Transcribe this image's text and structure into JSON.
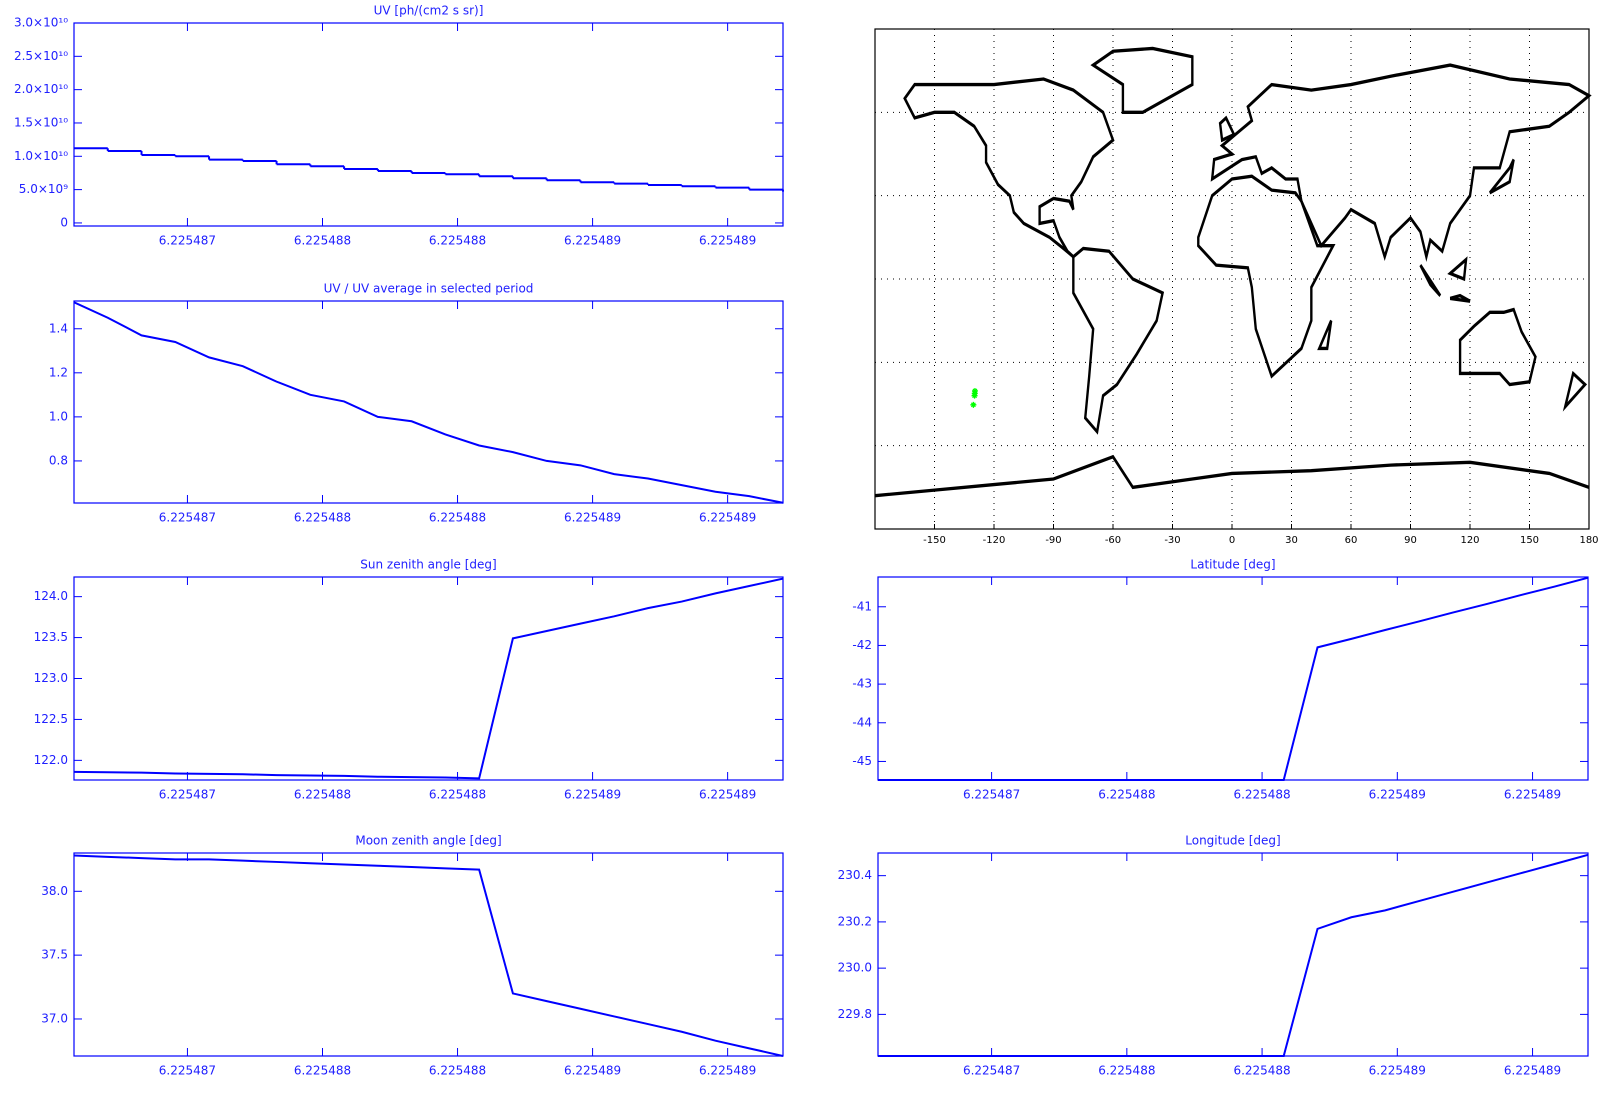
{
  "chart_data": [
    {
      "type": "line",
      "title": "UV [ph/(cm2 s sr)]",
      "steps": true,
      "color": "#0000ff",
      "x": [
        6.22548658,
        6.225486705,
        6.22548683,
        6.225486955,
        6.22548708,
        6.225487205,
        6.22548733,
        6.225487455,
        6.22548758,
        6.225487705,
        6.22548783,
        6.225487955,
        6.22548808,
        6.225488205,
        6.22548833,
        6.225488455,
        6.22548858,
        6.225488705,
        6.22548883,
        6.225488955,
        6.22548908,
        6.225489205
      ],
      "values": [
        11200000000.0,
        10800000000.0,
        10200000000.0,
        10000000000.0,
        9500000000.0,
        9300000000.0,
        8800000000.0,
        8500000000.0,
        8100000000.0,
        7800000000.0,
        7500000000.0,
        7300000000.0,
        7000000000.0,
        6700000000.0,
        6400000000.0,
        6100000000.0,
        5900000000.0,
        5700000000.0,
        5500000000.0,
        5300000000.0,
        5000000000.0,
        4700000000.0
      ],
      "xlim": [
        6.22548658,
        6.225489205
      ],
      "xticks": [
        6.225487,
        {
          "value": 6.2254875,
          "label": "6.225488"
        },
        6.225488,
        {
          "value": 6.2254885,
          "label": "6.225489"
        },
        6.225489
      ],
      "ylim": [
        -460000000.0,
        30000000000.0
      ],
      "yticks": [
        0,
        {
          "value": 5000000000.0,
          "label": "5.0×10⁹"
        },
        {
          "value": 10000000000.0,
          "label": "1.0×10¹⁰"
        },
        {
          "value": 15000000000.0,
          "label": "1.5×10¹⁰"
        },
        {
          "value": 20000000000.0,
          "label": "2.0×10¹⁰"
        },
        {
          "value": 25000000000.0,
          "label": "2.5×10¹⁰"
        },
        {
          "value": 30000000000.0,
          "label": "3.0×10¹⁰"
        }
      ]
    },
    {
      "type": "line",
      "title": "UV / UV average in selected period",
      "color": "#0000ff",
      "x": [
        6.22548658,
        6.225486705,
        6.22548683,
        6.225486955,
        6.22548708,
        6.225487205,
        6.22548733,
        6.225487455,
        6.22548758,
        6.225487705,
        6.22548783,
        6.225487955,
        6.22548808,
        6.225488205,
        6.22548833,
        6.225488455,
        6.22548858,
        6.225488705,
        6.22548883,
        6.225488955,
        6.22548908,
        6.225489205
      ],
      "values": [
        1.52,
        1.45,
        1.37,
        1.34,
        1.27,
        1.23,
        1.16,
        1.1,
        1.07,
        1.0,
        0.98,
        0.92,
        0.87,
        0.84,
        0.8,
        0.78,
        0.74,
        0.72,
        0.69,
        0.66,
        0.64,
        0.61
      ],
      "xlim": [
        6.22548658,
        6.225489205
      ],
      "xticks": [
        6.225487,
        {
          "value": 6.2254875,
          "label": "6.225488"
        },
        6.225488,
        {
          "value": 6.2254885,
          "label": "6.225489"
        },
        6.225489
      ],
      "ylim": [
        0.609,
        1.526
      ],
      "yticks": [
        0.8,
        {
          "value": 1,
          "label": "1.0"
        },
        1.2,
        1.4
      ]
    },
    {
      "type": "line",
      "title": "Sun zenith angle [deg]",
      "color": "#0000ff",
      "x": [
        6.22548658,
        6.225486705,
        6.22548683,
        6.225486955,
        6.22548708,
        6.225487205,
        6.22548733,
        6.225487455,
        6.22548758,
        6.225487705,
        6.22548783,
        6.225487955,
        6.22548808,
        6.225488205,
        6.22548833,
        6.225488455,
        6.22548858,
        6.225488705,
        6.22548883,
        6.225488955,
        6.22548908,
        6.225489205
      ],
      "values": [
        121.86,
        121.855,
        121.85,
        121.84,
        121.835,
        121.83,
        121.82,
        121.815,
        121.81,
        121.8,
        121.795,
        121.79,
        121.78,
        123.49,
        123.58,
        123.67,
        123.76,
        123.86,
        123.94,
        124.04,
        124.13,
        124.22
      ],
      "xlim": [
        6.22548658,
        6.225489205
      ],
      "xticks": [
        6.225487,
        {
          "value": 6.2254875,
          "label": "6.225488"
        },
        6.225488,
        {
          "value": 6.2254885,
          "label": "6.225489"
        },
        6.225489
      ],
      "ylim": [
        121.76,
        124.24
      ],
      "yticks": [
        {
          "value": 122,
          "label": "122.0"
        },
        122.5,
        {
          "value": 123,
          "label": "123.0"
        },
        123.5,
        {
          "value": 124,
          "label": "124.0"
        }
      ]
    },
    {
      "type": "line",
      "title": "Moon zenith angle [deg]",
      "color": "#0000ff",
      "x": [
        6.22548658,
        6.225486705,
        6.22548683,
        6.225486955,
        6.22548708,
        6.225487205,
        6.22548733,
        6.225487455,
        6.22548758,
        6.225487705,
        6.22548783,
        6.225487955,
        6.22548808,
        6.225488205,
        6.22548833,
        6.225488455,
        6.22548858,
        6.225488705,
        6.22548883,
        6.225488955,
        6.22548908,
        6.225489205
      ],
      "values": [
        38.28,
        38.27,
        38.26,
        38.25,
        38.25,
        38.24,
        38.23,
        38.22,
        38.21,
        38.2,
        38.19,
        38.18,
        38.17,
        37.2,
        37.14,
        37.08,
        37.02,
        36.96,
        36.9,
        36.83,
        36.77,
        36.71
      ],
      "xlim": [
        6.22548658,
        6.225489205
      ],
      "xticks": [
        6.225487,
        {
          "value": 6.2254875,
          "label": "6.225488"
        },
        6.225488,
        {
          "value": 6.2254885,
          "label": "6.225489"
        },
        6.225489
      ],
      "ylim": [
        36.71,
        38.3
      ],
      "yticks": [
        {
          "value": 37,
          "label": "37.0"
        },
        37.5,
        {
          "value": 38,
          "label": "38.0"
        }
      ]
    },
    {
      "type": "map",
      "color": "#000000",
      "series": [
        {
          "color": "#00ff00",
          "x": [
            -130.4,
            -129.8,
            -129.7,
            -129.6
          ],
          "values": [
            -45.3,
            -42.0,
            -41.2,
            -40.3
          ]
        }
      ],
      "xlim": [
        -180,
        180
      ],
      "xticks": [
        -150,
        -120,
        -90,
        -60,
        -30,
        0,
        30,
        60,
        90,
        120,
        150,
        180
      ],
      "ylim": [
        -90,
        90
      ],
      "y_gridlines": [
        -60,
        -30,
        0,
        30,
        60
      ]
    },
    {
      "type": "line",
      "title": "Latitude [deg]",
      "color": "#0000ff",
      "x": [
        6.22548658,
        6.225486705,
        6.22548683,
        6.225486955,
        6.22548708,
        6.225487205,
        6.22548733,
        6.225487455,
        6.22548758,
        6.225487705,
        6.22548783,
        6.225487955,
        6.22548808,
        6.225488205,
        6.22548833,
        6.225488455,
        6.22548858,
        6.225488705,
        6.22548883,
        6.225488955,
        6.22548908,
        6.225489205
      ],
      "values": [
        -45.48,
        -45.48,
        -45.48,
        -45.48,
        -45.48,
        -45.48,
        -45.48,
        -45.48,
        -45.48,
        -45.48,
        -45.48,
        -45.48,
        -45.48,
        -42.05,
        -41.83,
        -41.6,
        -41.38,
        -41.15,
        -40.93,
        -40.7,
        -40.48,
        -40.25
      ],
      "xlim": [
        6.22548658,
        6.225489205
      ],
      "xticks": [
        6.225487,
        {
          "value": 6.2254875,
          "label": "6.225488"
        },
        6.225488,
        {
          "value": 6.2254885,
          "label": "6.225489"
        },
        6.225489
      ],
      "ylim": [
        -45.48,
        -40.23
      ],
      "yticks": [
        -45,
        -44,
        -43,
        -42,
        -41
      ]
    },
    {
      "type": "line",
      "title": "Longitude [deg]",
      "color": "#0000ff",
      "x": [
        6.22548658,
        6.225486705,
        6.22548683,
        6.225486955,
        6.22548708,
        6.225487205,
        6.22548733,
        6.225487455,
        6.22548758,
        6.225487705,
        6.22548783,
        6.225487955,
        6.22548808,
        6.225488205,
        6.22548833,
        6.225488455,
        6.22548858,
        6.225488705,
        6.22548883,
        6.225488955,
        6.22548908,
        6.225489205
      ],
      "values": [
        229.62,
        229.62,
        229.62,
        229.62,
        229.62,
        229.62,
        229.62,
        229.62,
        229.62,
        229.62,
        229.62,
        229.62,
        229.62,
        230.17,
        230.22,
        230.25,
        230.29,
        230.33,
        230.37,
        230.41,
        230.45,
        230.49
      ],
      "xlim": [
        6.22548658,
        6.225489205
      ],
      "xticks": [
        6.225487,
        {
          "value": 6.2254875,
          "label": "6.225488"
        },
        6.225488,
        {
          "value": 6.2254885,
          "label": "6.225489"
        },
        6.225489
      ],
      "ylim": [
        229.62,
        230.498
      ],
      "yticks": [
        229.8,
        {
          "value": 230,
          "label": "230.0"
        },
        230.2,
        230.4
      ]
    }
  ]
}
